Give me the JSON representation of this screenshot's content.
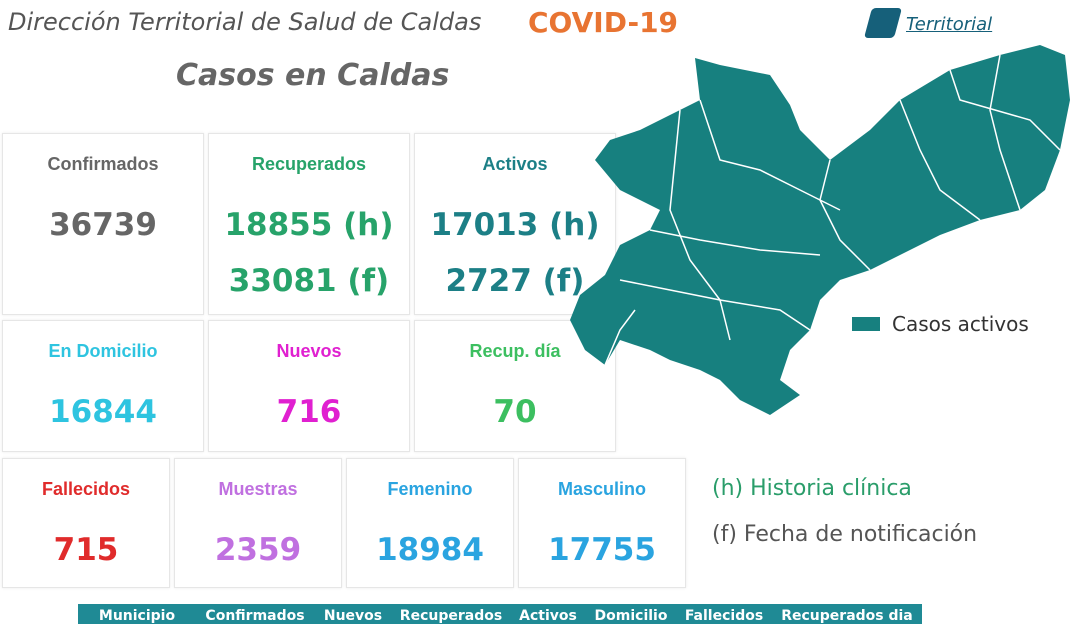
{
  "header": {
    "title": "Dirección Territorial de Salud de Caldas",
    "tag": "COVID-19",
    "logo": "Territorial"
  },
  "subtitle": "Casos en Caldas",
  "cards": [
    {
      "label": "Confirmados",
      "values": [
        "36739"
      ]
    },
    {
      "label": "Recuperados",
      "values": [
        "18855 (h)",
        "33081 (f)"
      ]
    },
    {
      "label": "Activos",
      "values": [
        "17013 (h)",
        "2727 (f)"
      ]
    },
    {
      "label": "En Domicilio",
      "values": [
        "16844"
      ]
    },
    {
      "label": "Nuevos",
      "values": [
        "716"
      ]
    },
    {
      "label": "Recup. día",
      "values": [
        "70"
      ]
    },
    {
      "label": "Fallecidos",
      "values": [
        "715"
      ]
    },
    {
      "label": "Muestras",
      "values": [
        "2359"
      ]
    },
    {
      "label": "Femenino",
      "values": [
        "18984"
      ]
    },
    {
      "label": "Masculino",
      "values": [
        "17755"
      ]
    }
  ],
  "legend": "Casos activos",
  "notes": [
    "(h) Historia clínica",
    "(f) Fecha de notificación"
  ],
  "table": {
    "headers": [
      "Municipio",
      "Confirmados",
      "Nuevos",
      "Recuperados",
      "Activos",
      "Domicilio",
      "Fallecidos",
      "Recuperados dia"
    ]
  }
}
